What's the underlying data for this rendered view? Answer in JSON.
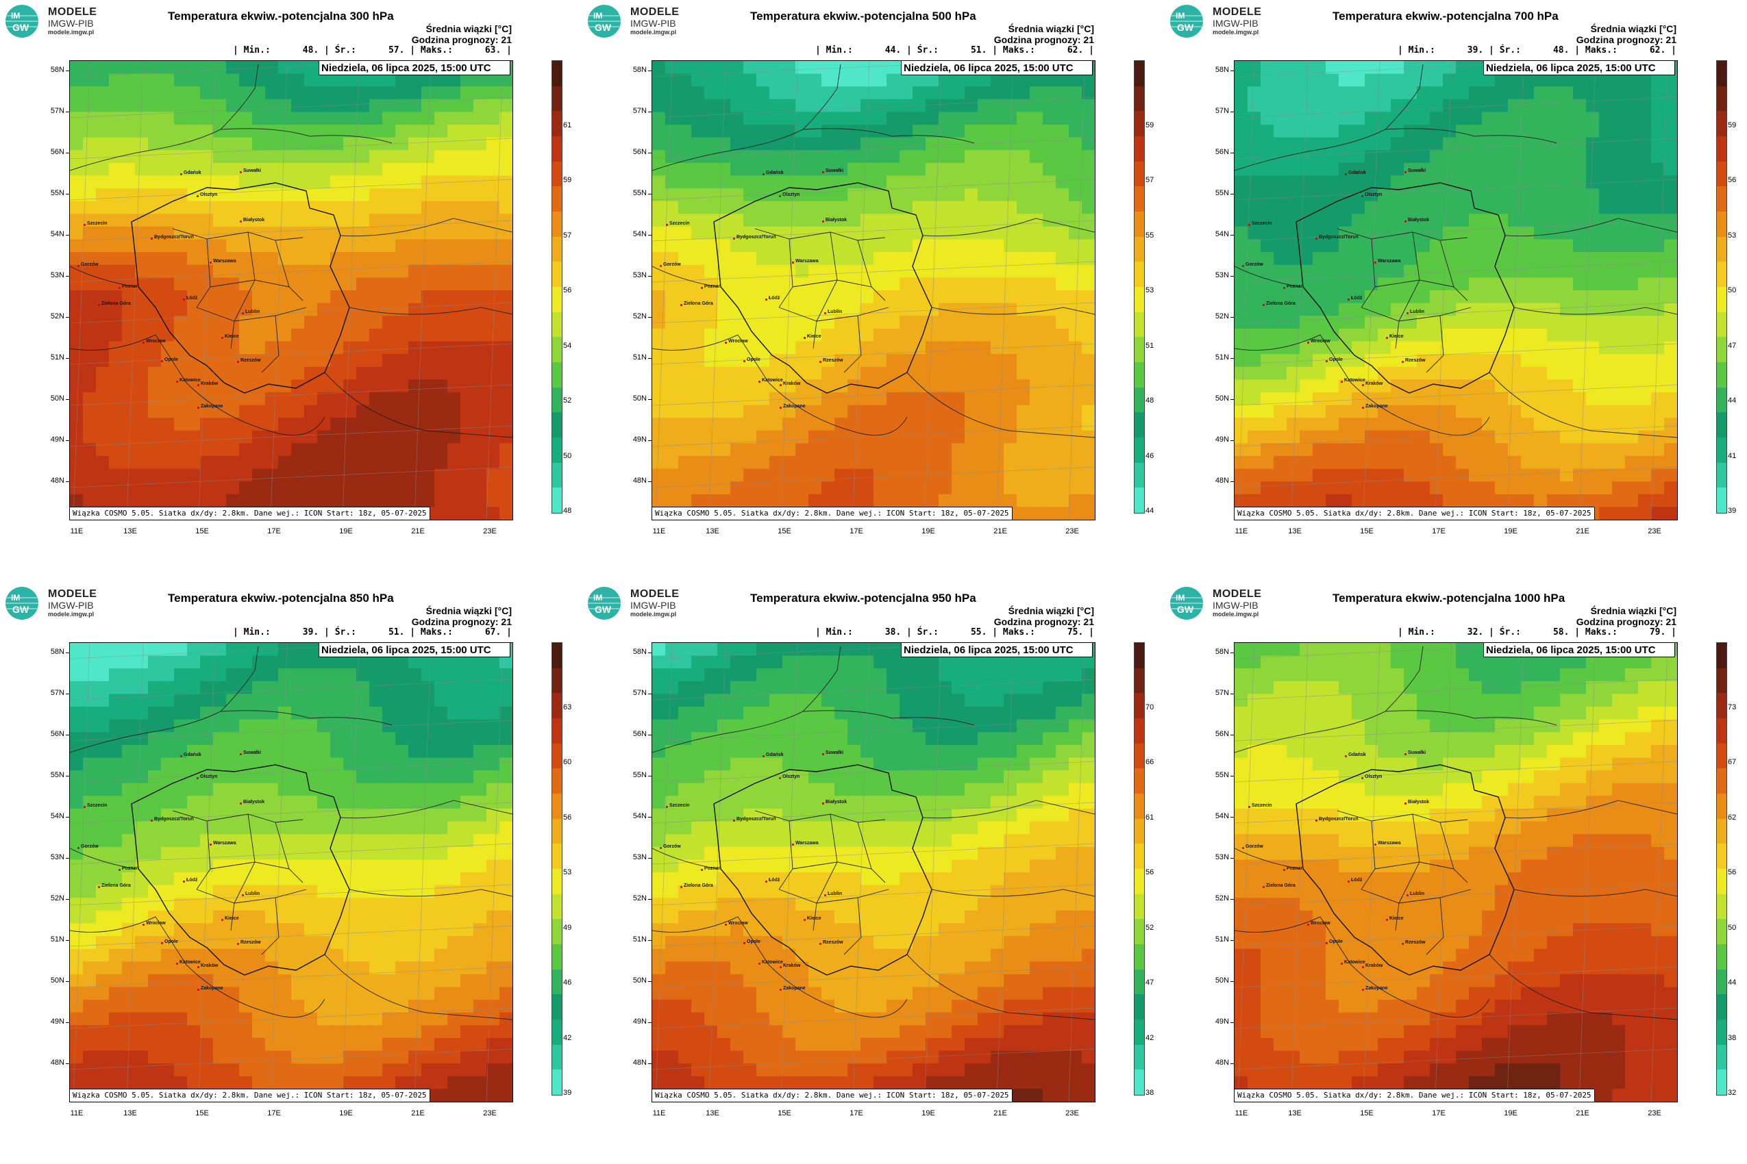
{
  "brand": {
    "logo_text": "IMGW",
    "line1": "MODELE",
    "line2": "IMGW-PIB",
    "line3": "modele.imgw.pl"
  },
  "common": {
    "header_line1": "Średnia wiązki [°C]",
    "header_line2": "Godzina prognozy: 21",
    "date": "Niedziela, 06 lipca 2025, 15:00 UTC",
    "footer": "Wiązka COSMO 5.05. Siatka dx/dy: 2.8km. Dane wej.: ICON Start: 18z, 05-07-2025",
    "lat_labels": [
      "58N",
      "57N",
      "56N",
      "55N",
      "54N",
      "53N",
      "52N",
      "51N",
      "50N",
      "49N",
      "48N"
    ],
    "lon_labels": [
      "11E",
      "13E",
      "15E",
      "17E",
      "19E",
      "21E",
      "23E"
    ],
    "cities": [
      "Gdańsk",
      "Olsztyn",
      "Suwałki",
      "Szczecin",
      "Bydgoszcz/Toruń",
      "Białystok",
      "Gorzów",
      "Poznań",
      "Warszawa",
      "Zielona Góra",
      "Łódź",
      "Lublin",
      "Wrocław",
      "Kielce",
      "Opole",
      "Katowice",
      "Kraków",
      "Rzeszów",
      "Zakopane"
    ]
  },
  "panels": [
    {
      "title": "Temperatura ekwiw.-potencjalna 300 hPa",
      "stats": "| Min.:      48. | Śr.:      57. | Maks.:      63. |",
      "min": 48,
      "mean": 57,
      "max": 63,
      "colorbar_ticks": [
        "48",
        "50",
        "52",
        "54",
        "56",
        "57",
        "59",
        "61"
      ],
      "fields": {
        "north": 0.18,
        "center": 0.72,
        "south": 0.86
      }
    },
    {
      "title": "Temperatura ekwiw.-potencjalna 500 hPa",
      "stats": "| Min.:      44. | Śr.:      51. | Maks.:      62. |",
      "min": 44,
      "mean": 51,
      "max": 62,
      "colorbar_ticks": [
        "44",
        "46",
        "48",
        "51",
        "53",
        "55",
        "57",
        "59"
      ],
      "fields": {
        "north": 0.08,
        "center": 0.52,
        "south": 0.7
      }
    },
    {
      "title": "Temperatura ekwiw.-potencjalna 700 hPa",
      "stats": "| Min.:      39. | Śr.:      48. | Maks.:      62. |",
      "min": 39,
      "mean": 48,
      "max": 62,
      "colorbar_ticks": [
        "39",
        "41",
        "44",
        "47",
        "50",
        "53",
        "56",
        "59"
      ],
      "fields": {
        "north": 0.1,
        "center": 0.36,
        "south": 0.78
      }
    },
    {
      "title": "Temperatura ekwiw.-potencjalna 850 hPa",
      "stats": "| Min.:      39. | Śr.:      51. | Maks.:      67. |",
      "min": 39,
      "mean": 51,
      "max": 67,
      "colorbar_ticks": [
        "39",
        "42",
        "46",
        "49",
        "53",
        "56",
        "60",
        "63"
      ],
      "fields": {
        "north": 0.12,
        "center": 0.5,
        "south": 0.82
      }
    },
    {
      "title": "Temperatura ekwiw.-potencjalna 950 hPa",
      "stats": "| Min.:      38. | Śr.:      55. | Maks.:      75. |",
      "min": 38,
      "mean": 55,
      "max": 75,
      "colorbar_ticks": [
        "38",
        "42",
        "47",
        "52",
        "56",
        "61",
        "66",
        "70"
      ],
      "fields": {
        "north": 0.15,
        "center": 0.55,
        "south": 0.84
      }
    },
    {
      "title": "Temperatura ekwiw.-potencjalna 1000 hPa",
      "stats": "| Min.:      32. | Śr.:      58. | Maks.:      79. |",
      "min": 32,
      "mean": 58,
      "max": 79,
      "colorbar_ticks": [
        "32",
        "38",
        "44",
        "50",
        "56",
        "62",
        "67",
        "73"
      ],
      "fields": {
        "north": 0.3,
        "center": 0.7,
        "south": 0.86
      }
    }
  ],
  "palette": [
    "#4ee8c9",
    "#2ec7a0",
    "#17ad7d",
    "#159b6b",
    "#33b35c",
    "#5bc844",
    "#8fd63a",
    "#c3e22e",
    "#eeea22",
    "#f3cb1f",
    "#efad1b",
    "#e98d17",
    "#e06b14",
    "#d44b12",
    "#bf3412",
    "#9a2a12",
    "#6f2311",
    "#4a1b0e"
  ]
}
